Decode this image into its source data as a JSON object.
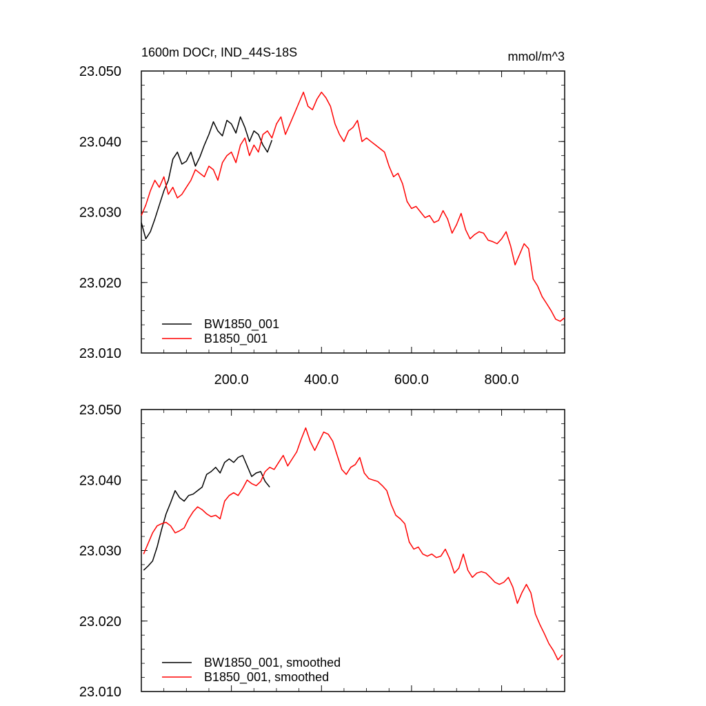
{
  "chart_data": [
    {
      "type": "line",
      "title": "1600m DOCr, IND_44S-18S",
      "units": "mmol/m^3",
      "xlim": [
        0,
        940
      ],
      "ylim": [
        23.01,
        23.05
      ],
      "xticks": [
        200,
        400,
        600,
        800
      ],
      "xtick_labels": [
        "200.0",
        "400.0",
        "600.0",
        "800.0"
      ],
      "yticks": [
        23.01,
        23.02,
        23.03,
        23.04,
        23.05
      ],
      "ytick_labels": [
        "23.010",
        "23.020",
        "23.030",
        "23.040",
        "23.050"
      ],
      "legend_position": "bottom-left",
      "series": [
        {
          "name": "BW1850_001",
          "color": "#000000",
          "x": [
            0,
            10,
            20,
            30,
            40,
            50,
            60,
            70,
            80,
            90,
            100,
            110,
            120,
            130,
            140,
            150,
            160,
            170,
            180,
            190,
            200,
            210,
            220,
            230,
            240,
            250,
            260,
            270,
            280,
            290
          ],
          "y": [
            23.0285,
            23.0262,
            23.0272,
            23.029,
            23.031,
            23.033,
            23.0345,
            23.0375,
            23.0385,
            23.0368,
            23.0372,
            23.0385,
            23.0365,
            23.0378,
            23.0395,
            23.041,
            23.0428,
            23.0415,
            23.0408,
            23.043,
            23.0425,
            23.0412,
            23.0435,
            23.042,
            23.04,
            23.0415,
            23.041,
            23.0395,
            23.0385,
            23.0402
          ]
        },
        {
          "name": "B1850_001",
          "color": "#ff0000",
          "x": [
            0,
            10,
            20,
            30,
            40,
            50,
            60,
            70,
            80,
            90,
            100,
            110,
            120,
            130,
            140,
            150,
            160,
            170,
            180,
            190,
            200,
            210,
            220,
            230,
            240,
            250,
            260,
            270,
            280,
            290,
            300,
            310,
            320,
            330,
            340,
            350,
            360,
            370,
            380,
            390,
            400,
            410,
            420,
            430,
            440,
            450,
            460,
            470,
            480,
            490,
            500,
            510,
            520,
            530,
            540,
            550,
            560,
            570,
            580,
            590,
            600,
            610,
            620,
            630,
            640,
            650,
            660,
            670,
            680,
            690,
            700,
            710,
            720,
            730,
            740,
            750,
            760,
            770,
            780,
            790,
            800,
            810,
            820,
            830,
            840,
            850,
            860,
            870,
            880,
            890,
            900,
            910,
            920,
            930,
            940
          ],
          "y": [
            23.0295,
            23.031,
            23.033,
            23.0345,
            23.0335,
            23.035,
            23.0325,
            23.0335,
            23.032,
            23.0325,
            23.0335,
            23.0345,
            23.036,
            23.0355,
            23.035,
            23.0365,
            23.036,
            23.0345,
            23.037,
            23.038,
            23.0385,
            23.037,
            23.0395,
            23.0405,
            23.038,
            23.0395,
            23.0385,
            23.041,
            23.0415,
            23.0405,
            23.0425,
            23.0435,
            23.041,
            23.0425,
            23.044,
            23.0455,
            23.047,
            23.045,
            23.0445,
            23.046,
            23.047,
            23.0462,
            23.045,
            23.0425,
            23.041,
            23.04,
            23.0415,
            23.042,
            23.043,
            23.04,
            23.0405,
            23.04,
            23.0395,
            23.039,
            23.0385,
            23.0365,
            23.035,
            23.0355,
            23.034,
            23.0315,
            23.0305,
            23.0308,
            23.03,
            23.0292,
            23.0295,
            23.0285,
            23.0288,
            23.0302,
            23.029,
            23.027,
            23.0282,
            23.0298,
            23.0275,
            23.0262,
            23.0268,
            23.0272,
            23.027,
            23.026,
            23.0258,
            23.0255,
            23.0262,
            23.0272,
            23.0252,
            23.0225,
            23.024,
            23.0255,
            23.0248,
            23.0205,
            23.0195,
            23.018,
            23.017,
            23.016,
            23.0148,
            23.0145,
            23.015
          ]
        }
      ]
    },
    {
      "type": "line",
      "xlim": [
        0,
        940
      ],
      "ylim": [
        23.01,
        23.05
      ],
      "xticks": [
        200,
        400,
        600,
        800
      ],
      "xtick_labels": [],
      "yticks": [
        23.01,
        23.02,
        23.03,
        23.04,
        23.05
      ],
      "ytick_labels": [
        "23.010",
        "23.020",
        "23.030",
        "23.040",
        "23.050"
      ],
      "legend_position": "bottom-left",
      "series": [
        {
          "name": "BW1850_001, smoothed",
          "color": "#000000",
          "x": [
            5,
            15,
            25,
            35,
            45,
            55,
            65,
            75,
            85,
            95,
            105,
            115,
            125,
            135,
            145,
            155,
            165,
            175,
            185,
            195,
            205,
            215,
            225,
            235,
            245,
            255,
            265,
            275,
            285
          ],
          "y": [
            23.0272,
            23.0278,
            23.0285,
            23.0305,
            23.033,
            23.0352,
            23.0368,
            23.0385,
            23.0375,
            23.037,
            23.0378,
            23.038,
            23.0385,
            23.039,
            23.0408,
            23.0412,
            23.0418,
            23.041,
            23.0425,
            23.043,
            23.0425,
            23.0432,
            23.0435,
            23.042,
            23.0405,
            23.041,
            23.0412,
            23.0398,
            23.039
          ]
        },
        {
          "name": "B1850_001, smoothed",
          "color": "#ff0000",
          "x": [
            5,
            15,
            25,
            35,
            45,
            55,
            65,
            75,
            85,
            95,
            105,
            115,
            125,
            135,
            145,
            155,
            165,
            175,
            185,
            195,
            205,
            215,
            225,
            235,
            245,
            255,
            265,
            275,
            285,
            295,
            305,
            315,
            325,
            335,
            345,
            355,
            365,
            375,
            385,
            395,
            405,
            415,
            425,
            435,
            445,
            455,
            465,
            475,
            485,
            495,
            505,
            515,
            525,
            535,
            545,
            555,
            565,
            575,
            585,
            595,
            605,
            615,
            625,
            635,
            645,
            655,
            665,
            675,
            685,
            695,
            705,
            715,
            725,
            735,
            745,
            755,
            765,
            775,
            785,
            795,
            805,
            815,
            825,
            835,
            845,
            855,
            865,
            875,
            885,
            895,
            905,
            915,
            925,
            935
          ],
          "y": [
            23.0295,
            23.031,
            23.0325,
            23.0335,
            23.0338,
            23.034,
            23.0335,
            23.0325,
            23.0328,
            23.0332,
            23.0345,
            23.0355,
            23.0362,
            23.0358,
            23.0352,
            23.0348,
            23.035,
            23.0345,
            23.037,
            23.0378,
            23.0382,
            23.0378,
            23.0388,
            23.04,
            23.0395,
            23.0392,
            23.0398,
            23.0412,
            23.0418,
            23.0415,
            23.0425,
            23.0435,
            23.042,
            23.043,
            23.044,
            23.0458,
            23.0474,
            23.0455,
            23.0442,
            23.0455,
            23.0468,
            23.0465,
            23.0455,
            23.0435,
            23.0415,
            23.0408,
            23.0418,
            23.0422,
            23.0432,
            23.041,
            23.0402,
            23.04,
            23.0398,
            23.0392,
            23.0385,
            23.0365,
            23.035,
            23.0345,
            23.0338,
            23.0312,
            23.0302,
            23.0305,
            23.0295,
            23.0292,
            23.0295,
            23.029,
            23.0292,
            23.0302,
            23.0288,
            23.0268,
            23.0275,
            23.0295,
            23.0272,
            23.0262,
            23.0268,
            23.027,
            23.0268,
            23.0262,
            23.0255,
            23.0252,
            23.0255,
            23.0262,
            23.0248,
            23.0225,
            23.024,
            23.0252,
            23.024,
            23.021,
            23.0195,
            23.0182,
            23.0168,
            23.0158,
            23.0145,
            23.0152
          ]
        }
      ]
    }
  ]
}
